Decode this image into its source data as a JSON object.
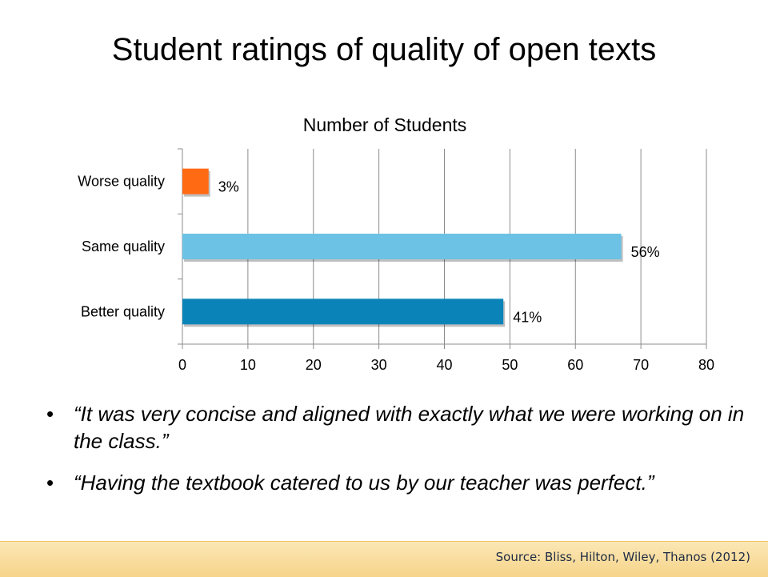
{
  "slide": {
    "title": "Student ratings of quality of open texts"
  },
  "chart_data": {
    "type": "bar",
    "orientation": "horizontal",
    "title": "Number of Students",
    "categories": [
      "Worse quality",
      "Same quality",
      "Better quality"
    ],
    "values": [
      4,
      67,
      49
    ],
    "data_labels": [
      "3%",
      "56%",
      "41%"
    ],
    "colors": [
      "#ff6a13",
      "#6cc2e4",
      "#0a84b8"
    ],
    "xlim": [
      0,
      80
    ],
    "xticks": [
      0,
      10,
      20,
      30,
      40,
      50,
      60,
      70,
      80
    ],
    "grid": true,
    "legend": "none"
  },
  "bullets": [
    "“It was very concise and aligned with exactly what we were working on in the class.”",
    "“Having the textbook catered to us by our teacher was perfect.”"
  ],
  "bullet_symbol": "•",
  "footer": {
    "source": "Source: Bliss, Hilton, Wiley, Thanos (2012)"
  }
}
